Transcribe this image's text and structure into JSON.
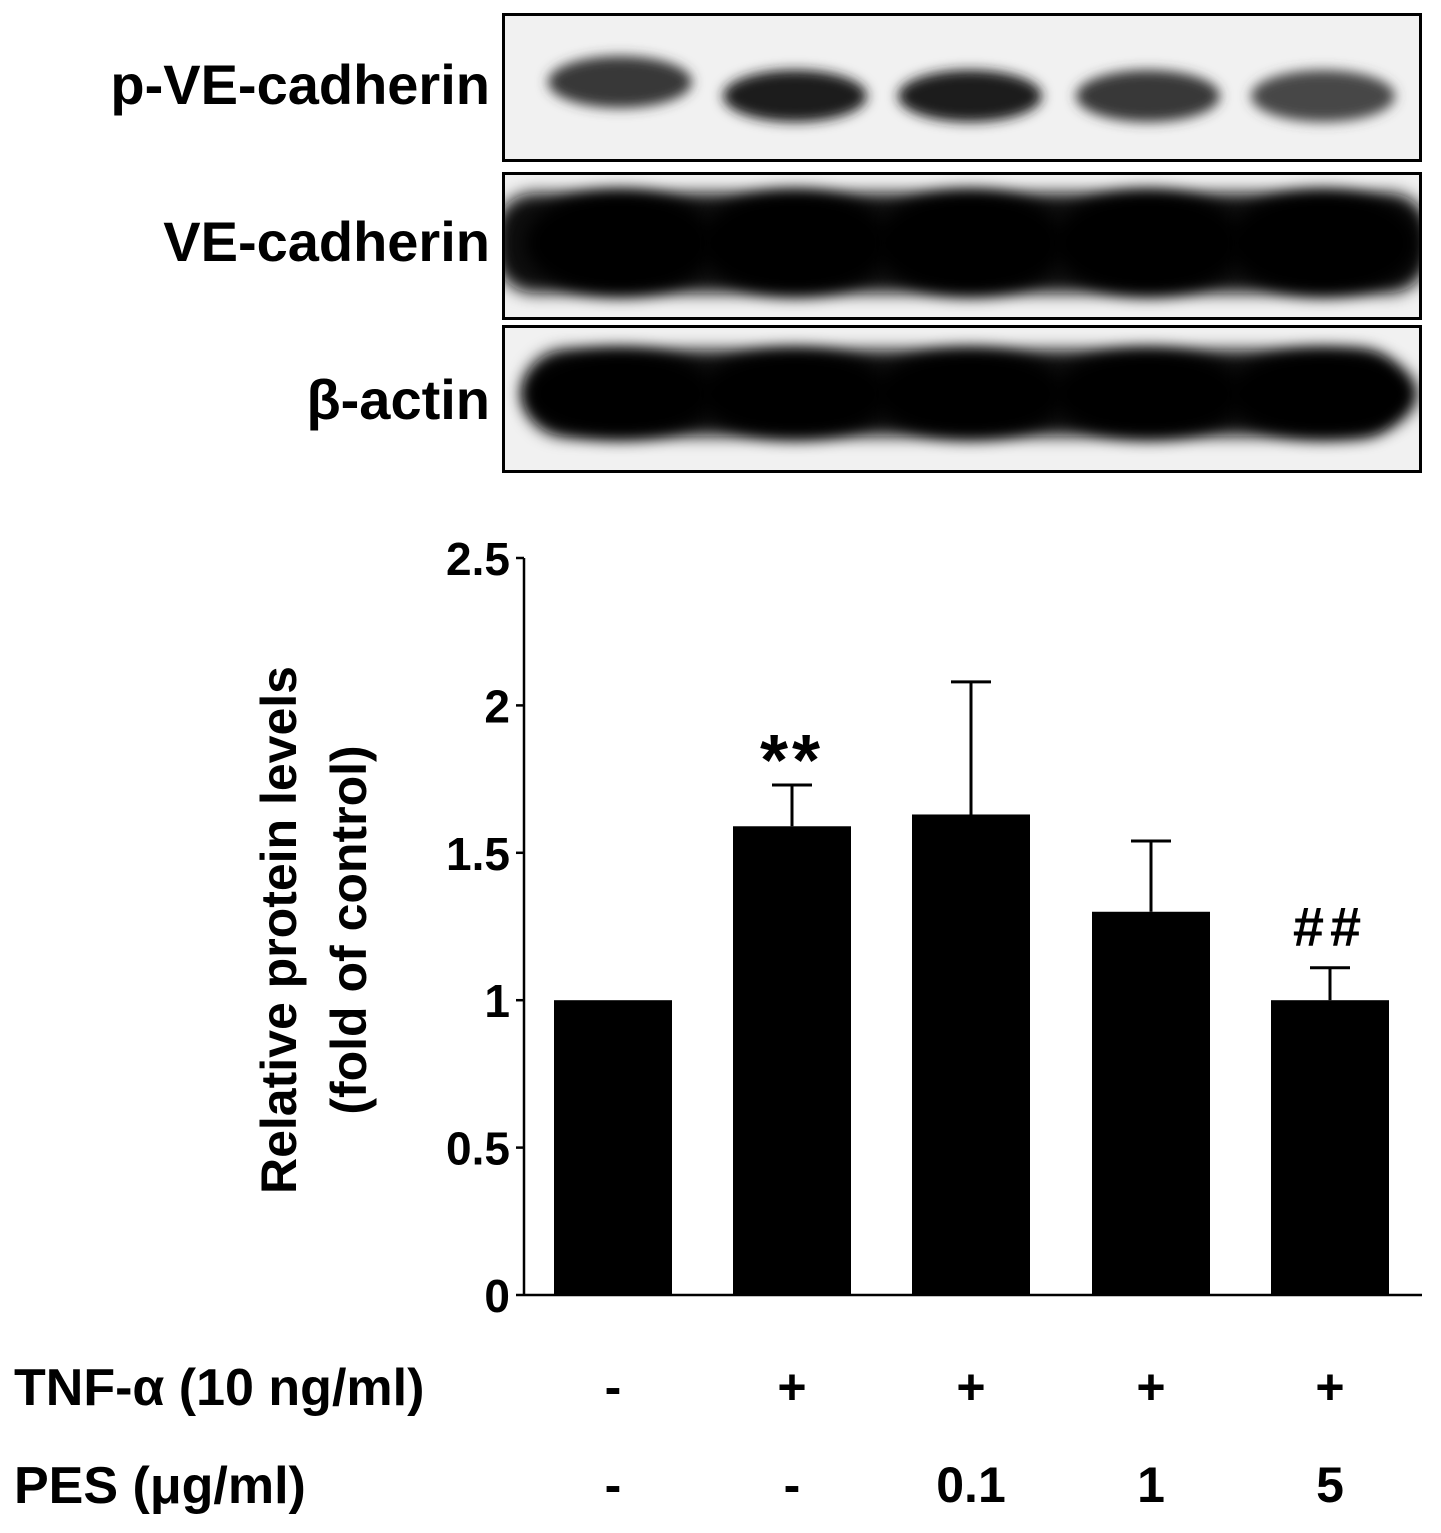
{
  "blot": {
    "rows": [
      {
        "label": "p-VE-cadherin",
        "intensity": [
          0.78,
          0.88,
          0.88,
          0.78,
          0.72
        ]
      },
      {
        "label": "VE-cadherin",
        "intensity": [
          1,
          1,
          1,
          1,
          1
        ]
      },
      {
        "label": "β-actin",
        "intensity": [
          1,
          1,
          1,
          1,
          1
        ]
      }
    ]
  },
  "chart_data": {
    "type": "bar",
    "title": "",
    "xlabel": "",
    "ylabel": "Relative protein levels\n(fold of control)",
    "ylabel_lines": [
      "Relative protein levels",
      "(fold of control)"
    ],
    "ylim": [
      0,
      2.5
    ],
    "yticks": [
      "0",
      "0.5",
      "1",
      "1.5",
      "2",
      "2.5"
    ],
    "categories": [
      "control",
      "TNF-α",
      "TNF-α + PES 0.1",
      "TNF-α + PES 1",
      "TNF-α + PES 5"
    ],
    "values": [
      1.0,
      1.59,
      1.63,
      1.3,
      1.0
    ],
    "errors": [
      0,
      0.14,
      0.45,
      0.24,
      0.11
    ],
    "annotations": [
      "",
      "**",
      "",
      "",
      "##"
    ],
    "bar_color": "#000000",
    "grid": false
  },
  "conditions": {
    "tnf": {
      "label": "TNF-α (10 ng/ml)",
      "values": [
        "-",
        "+",
        "+",
        "+",
        "+"
      ]
    },
    "pes": {
      "label": "PES (μg/ml)",
      "values": [
        "-",
        "-",
        "0.1",
        "1",
        "5"
      ]
    }
  }
}
